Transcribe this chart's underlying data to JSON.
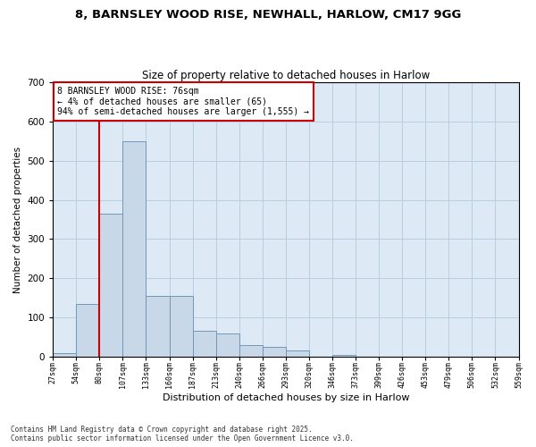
{
  "title_line1": "8, BARNSLEY WOOD RISE, NEWHALL, HARLOW, CM17 9GG",
  "title_line2": "Size of property relative to detached houses in Harlow",
  "xlabel": "Distribution of detached houses by size in Harlow",
  "ylabel": "Number of detached properties",
  "bar_color": "#c8d8e8",
  "bar_edge_color": "#7098b8",
  "background_color": "#ddeaf5",
  "grid_color": "#b8cfe0",
  "annotation_text": "8 BARNSLEY WOOD RISE: 76sqm\n← 4% of detached houses are smaller (65)\n94% of semi-detached houses are larger (1,555) →",
  "vline_color": "#cc0000",
  "footer_text": "Contains HM Land Registry data © Crown copyright and database right 2025.\nContains public sector information licensed under the Open Government Licence v3.0.",
  "bin_labels": [
    "27sqm",
    "54sqm",
    "80sqm",
    "107sqm",
    "133sqm",
    "160sqm",
    "187sqm",
    "213sqm",
    "240sqm",
    "266sqm",
    "293sqm",
    "320sqm",
    "346sqm",
    "373sqm",
    "399sqm",
    "426sqm",
    "453sqm",
    "479sqm",
    "506sqm",
    "532sqm",
    "559sqm"
  ],
  "bar_heights": [
    10,
    135,
    365,
    550,
    155,
    155,
    65,
    60,
    30,
    25,
    15,
    0,
    5,
    0,
    0,
    0,
    0,
    0,
    0,
    0
  ],
  "ylim": [
    0,
    700
  ],
  "yticks": [
    0,
    100,
    200,
    300,
    400,
    500,
    600,
    700
  ]
}
